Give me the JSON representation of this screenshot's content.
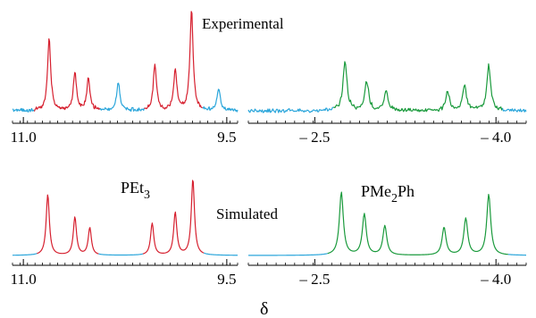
{
  "chart_data": {
    "type": "line",
    "row_labels": {
      "experimental": "Experimental",
      "simulated": "Simulated"
    },
    "xlabel": "δ",
    "compounds": [
      {
        "name_parts": [
          "PEt",
          "3",
          ""
        ],
        "color": "#d6202f"
      },
      {
        "name_parts": [
          "PMe",
          "2",
          "Ph"
        ],
        "color": "#1a9a3c"
      }
    ],
    "baseline_color": "#2ba6db",
    "panels": [
      {
        "id": "pet3-experimental",
        "row": "experimental",
        "xrange": [
          11.08,
          9.42
        ],
        "xticks": [
          11.0,
          9.5
        ],
        "tick_labels": [
          "11.0",
          "9.5"
        ],
        "peaks": [
          {
            "x": 10.81,
            "h": 0.72
          },
          {
            "x": 10.62,
            "h": 0.38
          },
          {
            "x": 10.52,
            "h": 0.32
          },
          {
            "x": 10.3,
            "h": 0.28
          },
          {
            "x": 10.03,
            "h": 0.46
          },
          {
            "x": 9.88,
            "h": 0.4
          },
          {
            "x": 9.76,
            "h": 1.0
          },
          {
            "x": 9.56,
            "h": 0.22
          }
        ],
        "signal_regions": [
          [
            10.92,
            10.44
          ],
          [
            10.11,
            9.68
          ]
        ]
      },
      {
        "id": "pme2ph-experimental",
        "row": "experimental",
        "xrange": [
          -1.95,
          -4.25
        ],
        "xticks": [
          -2.5,
          -4.0
        ],
        "tick_labels": [
          "– 2.5",
          "– 4.0"
        ],
        "peaks": [
          {
            "x": -2.75,
            "h": 0.78
          },
          {
            "x": -2.93,
            "h": 0.46
          },
          {
            "x": -3.09,
            "h": 0.3
          },
          {
            "x": -3.6,
            "h": 0.3
          },
          {
            "x": -3.74,
            "h": 0.38
          },
          {
            "x": -3.94,
            "h": 0.72
          }
        ],
        "signal_regions": [
          [
            -2.65,
            -4.05
          ]
        ]
      },
      {
        "id": "pet3-simulated",
        "row": "simulated",
        "xrange": [
          11.08,
          9.42
        ],
        "xticks": [
          11.0,
          9.5
        ],
        "tick_labels": [
          "11.0",
          "9.5"
        ],
        "peaks": [
          {
            "x": 10.82,
            "h": 0.8
          },
          {
            "x": 10.62,
            "h": 0.5
          },
          {
            "x": 10.51,
            "h": 0.36
          },
          {
            "x": 10.05,
            "h": 0.42
          },
          {
            "x": 9.88,
            "h": 0.56
          },
          {
            "x": 9.75,
            "h": 1.0
          }
        ],
        "signal_regions": [
          [
            10.9,
            10.45
          ],
          [
            10.12,
            9.67
          ]
        ]
      },
      {
        "id": "pme2ph-simulated",
        "row": "simulated",
        "xrange": [
          -1.95,
          -4.25
        ],
        "xticks": [
          -2.5,
          -4.0
        ],
        "tick_labels": [
          "– 2.5",
          "– 4.0"
        ],
        "peaks": [
          {
            "x": -2.72,
            "h": 0.86
          },
          {
            "x": -2.91,
            "h": 0.56
          },
          {
            "x": -3.08,
            "h": 0.4
          },
          {
            "x": -3.57,
            "h": 0.38
          },
          {
            "x": -3.75,
            "h": 0.5
          },
          {
            "x": -3.94,
            "h": 0.83
          }
        ],
        "signal_regions": [
          [
            -2.6,
            -4.1
          ]
        ]
      }
    ]
  }
}
